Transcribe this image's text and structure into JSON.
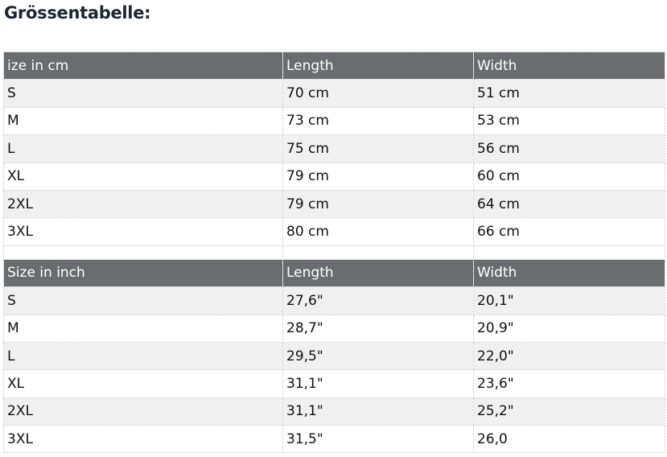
{
  "title": "Grössentabelle:",
  "colors": {
    "header_bg": "#6b6c70",
    "row_alt_bg": "#f0f0f0",
    "title": "#1e2630"
  },
  "tables": [
    {
      "headers": [
        "ize in cm",
        "Length",
        "Width"
      ],
      "rows": [
        [
          "S",
          "70 cm",
          "51 cm"
        ],
        [
          "M",
          "73 cm",
          "53 cm"
        ],
        [
          "L",
          "75 cm",
          "56 cm"
        ],
        [
          "XL",
          "79 cm",
          "60 cm"
        ],
        [
          "2XL",
          "79 cm",
          "64 cm"
        ],
        [
          "3XL",
          "80 cm",
          "66 cm"
        ]
      ]
    },
    {
      "headers": [
        "Size in inch",
        "Length",
        "Width"
      ],
      "rows": [
        [
          "S",
          "27,6\"",
          "20,1\""
        ],
        [
          "M",
          "28,7\"",
          "20,9\""
        ],
        [
          "L",
          "29,5\"",
          "22,0\""
        ],
        [
          "XL",
          "31,1\"",
          "23,6\""
        ],
        [
          "2XL",
          "31,1\"",
          "25,2\""
        ],
        [
          "3XL",
          "31,5\"",
          "26,0"
        ]
      ]
    }
  ]
}
